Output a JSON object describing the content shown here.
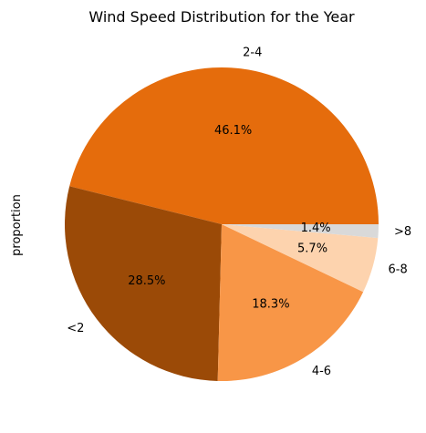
{
  "chart_data": {
    "type": "pie",
    "title": "Wind Speed Distribution for the Year",
    "ylabel": "proportion",
    "categories": [
      "2-4",
      "<2",
      "4-6",
      "6-8",
      ">8"
    ],
    "values": [
      46.1,
      28.5,
      18.3,
      5.7,
      1.4
    ],
    "percent_labels": [
      "46.1%",
      "28.5%",
      "18.3%",
      "5.7%",
      "1.4%"
    ],
    "colors": [
      "#e56c0c",
      "#9b4a07",
      "#f89647",
      "#fdd3ae",
      "#d9d9d9"
    ],
    "start_angle": "counterclockwise from 3 o'clock",
    "legend": "none"
  }
}
